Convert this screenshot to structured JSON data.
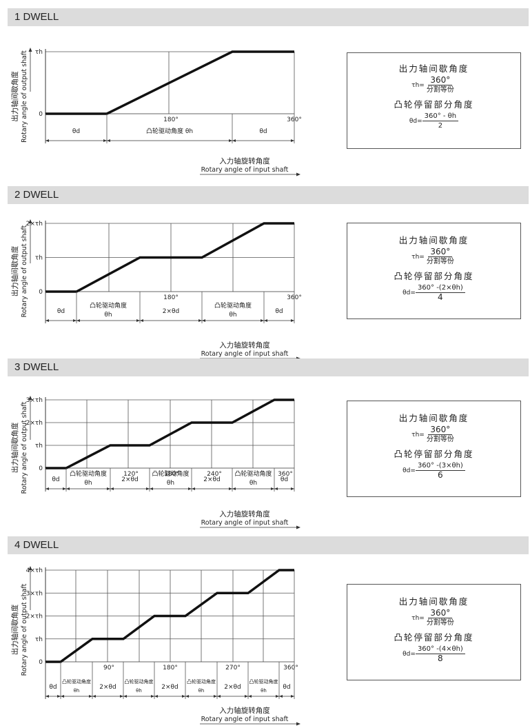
{
  "axes": {
    "y_cn": "出力轴间歇角度",
    "y_en": "Rotary angle of output shaft",
    "x_cn": "入力轴旋转角度",
    "x_en": "Rotary angle of input shaft"
  },
  "formula": {
    "title1": "出力轴间歇角度",
    "tau_lhs": "τh=",
    "tau_num": "360°",
    "tau_den": "分割等份",
    "title2": "凸轮停留部分角度",
    "theta_lhs": "θd="
  },
  "sections": [
    {
      "header": "1 DWELL",
      "y_ticks": [
        "0",
        "τh"
      ],
      "x_ticks": [
        "180°",
        "360°"
      ],
      "segments": [
        "θd",
        "凸轮驱动角度 θh",
        "θd"
      ],
      "theta_num": "360° - θh",
      "theta_den": "2"
    },
    {
      "header": "2 DWELL",
      "y_ticks": [
        "0",
        "τh",
        "2×τh"
      ],
      "x_ticks": [
        "180°",
        "360°"
      ],
      "segments": [
        "θd",
        "凸轮驱动角度|θh",
        "2×θd",
        "凸轮驱动角度|θh",
        "θd"
      ],
      "theta_num": "360° -(2×θh)",
      "theta_den": "4"
    },
    {
      "header": "3 DWELL",
      "y_ticks": [
        "0",
        "τh",
        "2×τh",
        "3×τh"
      ],
      "x_ticks": [
        "120°",
        "180°",
        "240°",
        "360°"
      ],
      "segments": [
        "θd",
        "凸轮驱动角度|θh",
        "2×θd",
        "凸轮驱动角度|θh",
        "2×θd",
        "凸轮驱动角度|θh",
        "θd"
      ],
      "theta_num": "360° -(3×θh)",
      "theta_den": "6"
    },
    {
      "header": "4 DWELL",
      "y_ticks": [
        "0",
        "τh",
        "2×τh",
        "3×τh",
        "4×τh"
      ],
      "x_ticks": [
        "90°",
        "180°",
        "270°",
        "360°"
      ],
      "segments": [
        "θd",
        "凸轮驱动角度|θh",
        "2×θd",
        "凸轮驱动角度|θh",
        "2×θd",
        "凸轮驱动角度|θh",
        "2×θd",
        "凸轮驱动角度|θh",
        "θd"
      ],
      "theta_num": "360° -(4×θh)",
      "theta_den": "8"
    }
  ]
}
